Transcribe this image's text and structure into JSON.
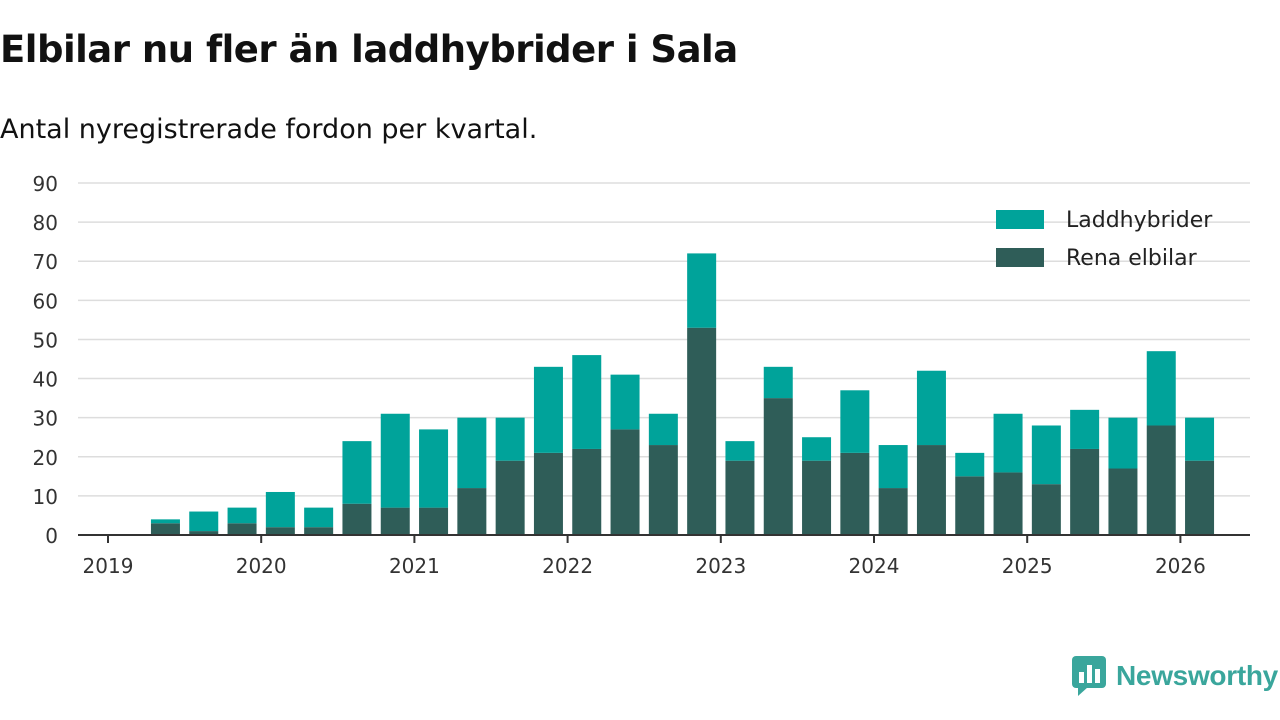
{
  "header": {
    "title": "Elbilar nu fler än laddhybrider i Sala",
    "subtitle": "Antal nyregistrerade fordon per kvartal."
  },
  "brand": {
    "name": "Newsworthy",
    "icon": "newsworthy-logo-icon",
    "color": "#3aa69c"
  },
  "colors": {
    "laddhybrider": "#00a39a",
    "rena_elbilar": "#2f5d58",
    "grid": "#dddddd",
    "axis": "#333333"
  },
  "chart_data": {
    "type": "bar",
    "stacked": true,
    "title": "Elbilar nu fler än laddhybrider i Sala",
    "subtitle": "Antal nyregistrerade fordon per kvartal.",
    "xlabel": "",
    "ylabel": "",
    "ylim": [
      0,
      90
    ],
    "yticks": [
      0,
      10,
      20,
      30,
      40,
      50,
      60,
      70,
      80,
      90
    ],
    "xticks": [
      "2019",
      "2020",
      "2021",
      "2022",
      "2023",
      "2024",
      "2025",
      "2026"
    ],
    "grid": true,
    "legend_position": "top-right",
    "categories": [
      "2019 Q2",
      "2019 Q3",
      "2019 Q4",
      "2020 Q1",
      "2020 Q2",
      "2020 Q3",
      "2020 Q4",
      "2021 Q1",
      "2021 Q2",
      "2021 Q3",
      "2021 Q4",
      "2022 Q1",
      "2022 Q2",
      "2022 Q3",
      "2022 Q4",
      "2023 Q1",
      "2023 Q2",
      "2023 Q3",
      "2023 Q4",
      "2024 Q1",
      "2024 Q2",
      "2024 Q3",
      "2024 Q4",
      "2025 Q1",
      "2025 Q2",
      "2025 Q3",
      "2025 Q4",
      "2026 Q1"
    ],
    "series": [
      {
        "name": "Rena elbilar",
        "color": "#2f5d58",
        "values": [
          3,
          1,
          3,
          2,
          2,
          8,
          7,
          7,
          12,
          19,
          21,
          22,
          27,
          23,
          53,
          19,
          35,
          19,
          21,
          12,
          23,
          15,
          16,
          13,
          22,
          17,
          28,
          19
        ]
      },
      {
        "name": "Laddhybrider",
        "color": "#00a39a",
        "values": [
          1,
          5,
          4,
          9,
          5,
          16,
          24,
          20,
          18,
          11,
          22,
          24,
          14,
          8,
          19,
          5,
          8,
          6,
          16,
          11,
          19,
          6,
          15,
          15,
          10,
          13,
          19,
          11
        ]
      }
    ]
  }
}
